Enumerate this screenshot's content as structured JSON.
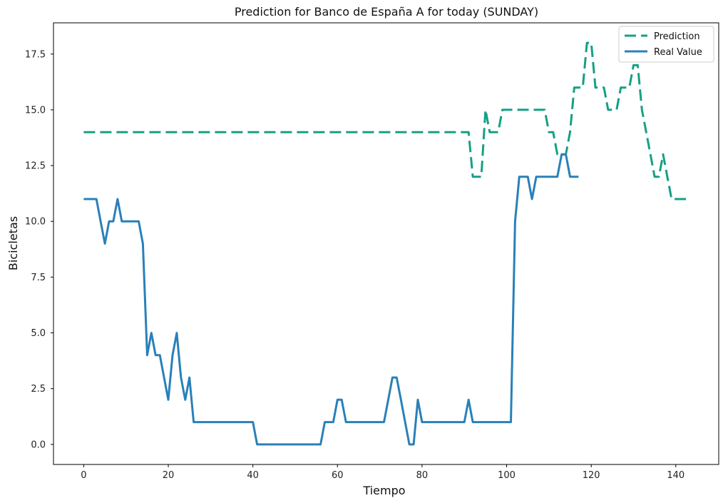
{
  "chart_data": {
    "type": "line",
    "title": "Prediction for Banco de España A for today (SUNDAY)",
    "xlabel": "Tiempo",
    "ylabel": "Bicicletas",
    "xlim": [
      -7.15,
      150.15
    ],
    "ylim": [
      -0.9,
      18.9
    ],
    "xticks": [
      0,
      20,
      40,
      60,
      80,
      100,
      120,
      140
    ],
    "xtick_labels": [
      "0",
      "20",
      "40",
      "60",
      "80",
      "100",
      "120",
      "140"
    ],
    "yticks": [
      0,
      2.5,
      5,
      7.5,
      10,
      12.5,
      15,
      17.5
    ],
    "ytick_labels": [
      "0.0",
      "2.5",
      "5.0",
      "7.5",
      "10.0",
      "12.5",
      "15.0",
      "17.5"
    ],
    "grid": false,
    "legend_position": "top-right",
    "series": [
      {
        "name": "Prediction",
        "color": "#16a085",
        "style": "dashed",
        "x": [
          0,
          91,
          92,
          93,
          94,
          95,
          96,
          97,
          98,
          99,
          100,
          101,
          102,
          103,
          104,
          105,
          106,
          107,
          108,
          109,
          110,
          111,
          112,
          113,
          114,
          115,
          116,
          117,
          118,
          119,
          120,
          121,
          122,
          123,
          124,
          125,
          126,
          127,
          128,
          129,
          130,
          131,
          132,
          133,
          134,
          135,
          136,
          137,
          138,
          139,
          140,
          141,
          142,
          143
        ],
        "values": [
          14,
          14,
          12,
          12,
          12,
          15,
          14,
          14,
          14,
          15,
          15,
          15,
          15,
          15,
          15,
          15,
          15,
          15,
          15,
          15,
          14,
          14,
          13,
          13,
          13,
          14,
          16,
          16,
          16,
          18,
          18,
          16,
          16,
          16,
          15,
          15,
          15,
          16,
          16,
          16,
          17,
          17,
          15,
          14,
          13,
          12,
          12,
          13,
          12,
          11,
          11,
          11,
          11,
          11
        ]
      },
      {
        "name": "Real Value",
        "color": "#2980b9",
        "style": "solid",
        "x": [
          0,
          1,
          2,
          3,
          4,
          5,
          6,
          7,
          8,
          9,
          10,
          11,
          12,
          13,
          14,
          15,
          16,
          17,
          18,
          19,
          20,
          21,
          22,
          23,
          24,
          25,
          26,
          27,
          40,
          41,
          56,
          57,
          58,
          59,
          60,
          61,
          62,
          71,
          72,
          73,
          74,
          75,
          76,
          77,
          78,
          79,
          80,
          90,
          91,
          92,
          100,
          101,
          102,
          103,
          104,
          105,
          106,
          107,
          112,
          113,
          114,
          115,
          116,
          117
        ],
        "values": [
          11,
          11,
          11,
          11,
          10,
          9,
          10,
          10,
          11,
          10,
          10,
          10,
          10,
          10,
          9,
          4,
          5,
          4,
          4,
          3,
          2,
          4,
          5,
          3,
          2,
          3,
          1,
          1,
          1,
          0,
          0,
          1,
          1,
          1,
          2,
          2,
          1,
          1,
          2,
          3,
          3,
          2,
          1,
          0,
          0,
          2,
          1,
          1,
          2,
          1,
          1,
          1,
          10,
          12,
          12,
          12,
          11,
          12,
          12,
          13,
          13,
          12,
          12,
          12
        ]
      }
    ]
  }
}
